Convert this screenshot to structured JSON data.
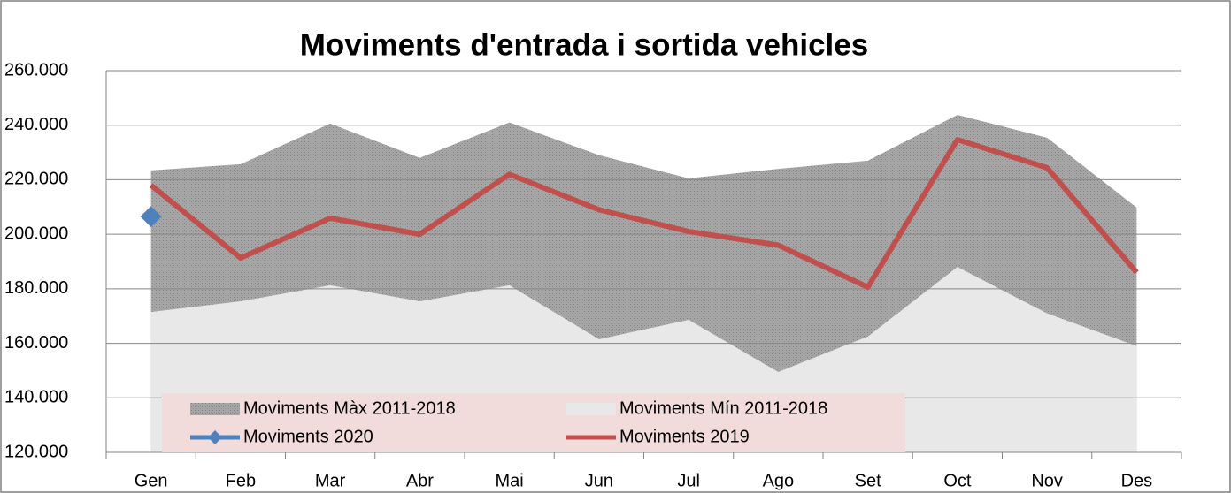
{
  "chart_data": {
    "type": "line",
    "title": "Moviments d'entrada i sortida vehicles",
    "categories": [
      "Gen",
      "Feb",
      "Mar",
      "Abr",
      "Mai",
      "Jun",
      "Jul",
      "Ago",
      "Set",
      "Oct",
      "Nov",
      "Des"
    ],
    "series": [
      {
        "name": "Moviments Màx 2011-2018",
        "type": "area",
        "color": "#a6a6a6",
        "values": [
          223400,
          225700,
          240600,
          228000,
          241000,
          229000,
          220500,
          224000,
          227000,
          243800,
          235400,
          209800
        ]
      },
      {
        "name": "Moviments Mín 2011-2018",
        "type": "area",
        "color": "#e8e8e8",
        "values": [
          171500,
          175400,
          181300,
          175400,
          181300,
          161500,
          168600,
          149500,
          162500,
          188000,
          171000,
          159000
        ]
      },
      {
        "name": "Moviments 2020",
        "type": "line",
        "marker": "diamond",
        "color": "#4f81bd",
        "values": [
          206500,
          null,
          null,
          null,
          null,
          null,
          null,
          null,
          null,
          null,
          null,
          null
        ]
      },
      {
        "name": "Moviments 2019",
        "type": "line",
        "color": "#c0504d",
        "values": [
          218000,
          191300,
          205900,
          200000,
          222000,
          209000,
          201000,
          196000,
          180600,
          234700,
          224400,
          186000
        ]
      }
    ],
    "ylim": [
      120000,
      260000
    ],
    "yticks": [
      {
        "value": 120000,
        "label": "120.000"
      },
      {
        "value": 140000,
        "label": "140.000"
      },
      {
        "value": 160000,
        "label": "160.000"
      },
      {
        "value": 180000,
        "label": "180.000"
      },
      {
        "value": 200000,
        "label": "200.000"
      },
      {
        "value": 220000,
        "label": "220.000"
      },
      {
        "value": 240000,
        "label": "240.000"
      },
      {
        "value": 260000,
        "label": "260.000"
      }
    ],
    "grid": true,
    "legend": "bottom-left"
  }
}
